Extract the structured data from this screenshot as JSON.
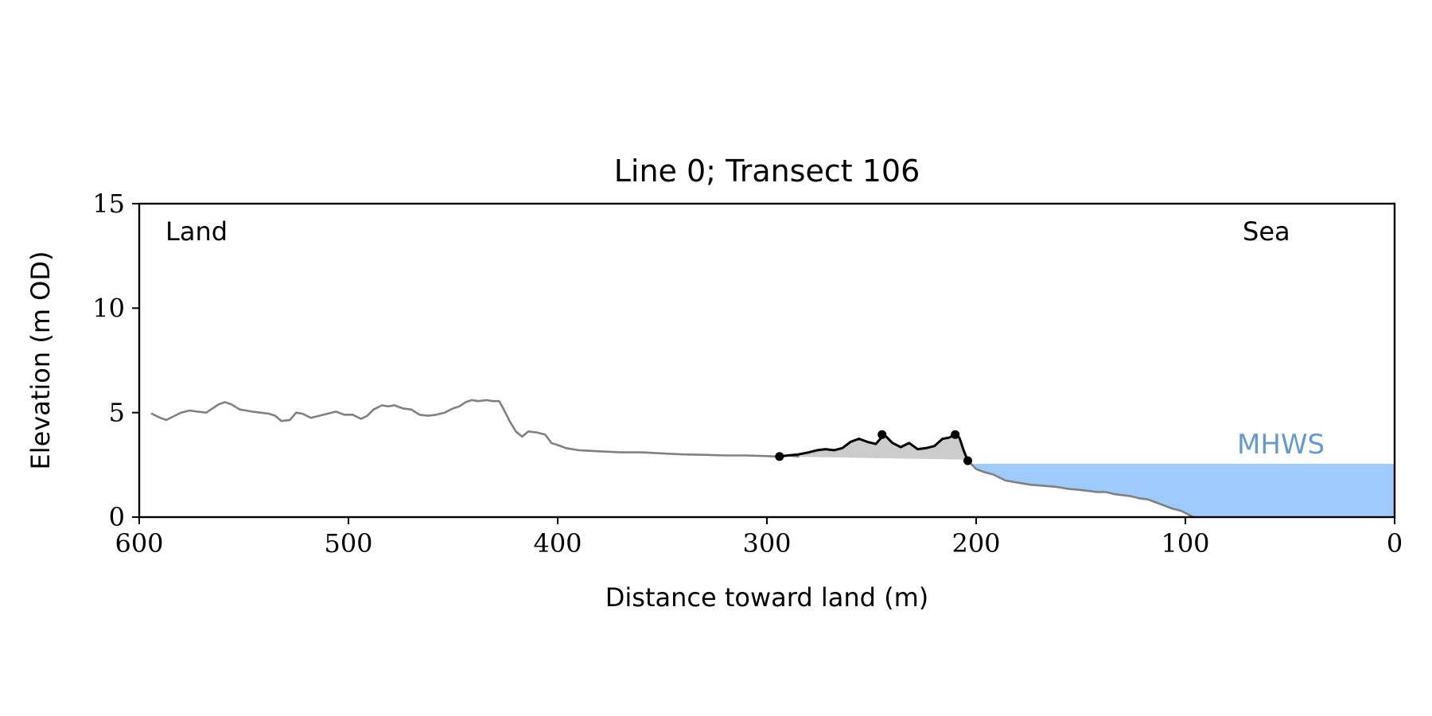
{
  "chart_data": {
    "type": "line",
    "title": "Line 0; Transect 106",
    "xlabel": "Distance toward land (m)",
    "ylabel": "Elevation (m OD)",
    "xlim": [
      600,
      0
    ],
    "ylim": [
      0,
      15
    ],
    "x_ticks": [
      600,
      500,
      400,
      300,
      200,
      100,
      0
    ],
    "y_ticks": [
      0,
      5,
      10,
      15
    ],
    "x_tick_labels": [
      "600",
      "500",
      "400",
      "300",
      "200",
      "100",
      "0"
    ],
    "y_tick_labels": [
      "0",
      "5",
      "10",
      "15"
    ],
    "grid": false,
    "annotations": {
      "land_label": "Land",
      "sea_label": "Sea",
      "mhws_label": "MHWS"
    },
    "mhws": {
      "elevation": 2.55,
      "x_from": 203,
      "x_to": 0
    },
    "series": [
      {
        "role": "profile",
        "color": "#808080",
        "x": [
          594,
          590,
          587,
          584,
          580,
          576,
          572,
          568,
          565,
          562,
          559,
          556,
          552,
          549,
          546,
          542,
          538,
          535,
          532,
          528,
          525,
          522,
          518,
          514,
          510,
          506,
          502,
          498,
          494,
          491,
          488,
          484,
          481,
          478,
          474,
          470,
          466,
          462,
          458,
          454,
          450,
          447,
          444,
          441,
          438,
          434,
          431,
          428,
          426,
          423,
          420,
          417,
          414,
          410,
          406,
          403,
          400,
          396,
          390,
          380,
          370,
          360,
          350,
          340,
          330,
          320,
          310,
          300,
          295,
          290,
          285
        ],
        "y": [
          4.95,
          4.75,
          4.65,
          4.8,
          5.0,
          5.1,
          5.05,
          5.0,
          5.2,
          5.4,
          5.5,
          5.4,
          5.15,
          5.1,
          5.05,
          5.0,
          4.95,
          4.85,
          4.6,
          4.65,
          5.0,
          4.95,
          4.75,
          4.85,
          4.95,
          5.05,
          4.9,
          4.9,
          4.7,
          4.85,
          5.15,
          5.35,
          5.3,
          5.35,
          5.2,
          5.15,
          4.9,
          4.85,
          4.9,
          5.0,
          5.2,
          5.3,
          5.5,
          5.6,
          5.55,
          5.6,
          5.55,
          5.55,
          5.2,
          4.6,
          4.1,
          3.85,
          4.1,
          4.05,
          3.95,
          3.55,
          3.45,
          3.3,
          3.2,
          3.15,
          3.1,
          3.1,
          3.05,
          3.0,
          2.98,
          2.95,
          2.95,
          2.92,
          2.9,
          2.95,
          2.9
        ]
      },
      {
        "role": "dune",
        "color": "#000000",
        "fill": "#cccccc",
        "baseline_y": [
          2.9,
          2.75
        ],
        "x": [
          294,
          290,
          285,
          280,
          276,
          272,
          268,
          264,
          260,
          256,
          252,
          248,
          244,
          240,
          236,
          232,
          228,
          224,
          220,
          216,
          213,
          210,
          208,
          206,
          204
        ],
        "y": [
          2.9,
          2.95,
          3.0,
          3.1,
          3.2,
          3.25,
          3.2,
          3.3,
          3.6,
          3.75,
          3.6,
          3.5,
          3.95,
          3.55,
          3.35,
          3.55,
          3.25,
          3.3,
          3.4,
          3.75,
          3.8,
          3.95,
          3.8,
          3.2,
          2.7
        ]
      },
      {
        "role": "foreshore",
        "color": "#808080",
        "x": [
          203,
          200,
          196,
          192,
          186,
          180,
          174,
          168,
          162,
          156,
          150,
          146,
          142,
          138,
          134,
          130,
          126,
          122,
          118,
          114,
          110,
          106,
          102,
          99,
          96
        ],
        "y": [
          2.6,
          2.3,
          2.15,
          2.05,
          1.75,
          1.65,
          1.55,
          1.5,
          1.45,
          1.35,
          1.3,
          1.25,
          1.2,
          1.2,
          1.1,
          1.05,
          1.0,
          0.9,
          0.85,
          0.7,
          0.55,
          0.4,
          0.3,
          0.15,
          0.0
        ]
      }
    ],
    "markers": [
      {
        "name": "dune-toe",
        "x": 294,
        "y": 2.9
      },
      {
        "name": "dune-crest",
        "x": 245,
        "y": 3.95
      },
      {
        "name": "dune-crest-seaward",
        "x": 210,
        "y": 3.95
      },
      {
        "name": "dune-seaward-toe",
        "x": 204,
        "y": 2.7
      }
    ],
    "colors": {
      "profile": "#808080",
      "dune_line": "#000000",
      "dune_fill": "#cccccc",
      "water_fill": "#9ecbfb",
      "mhws_text": "#6699cc"
    }
  }
}
